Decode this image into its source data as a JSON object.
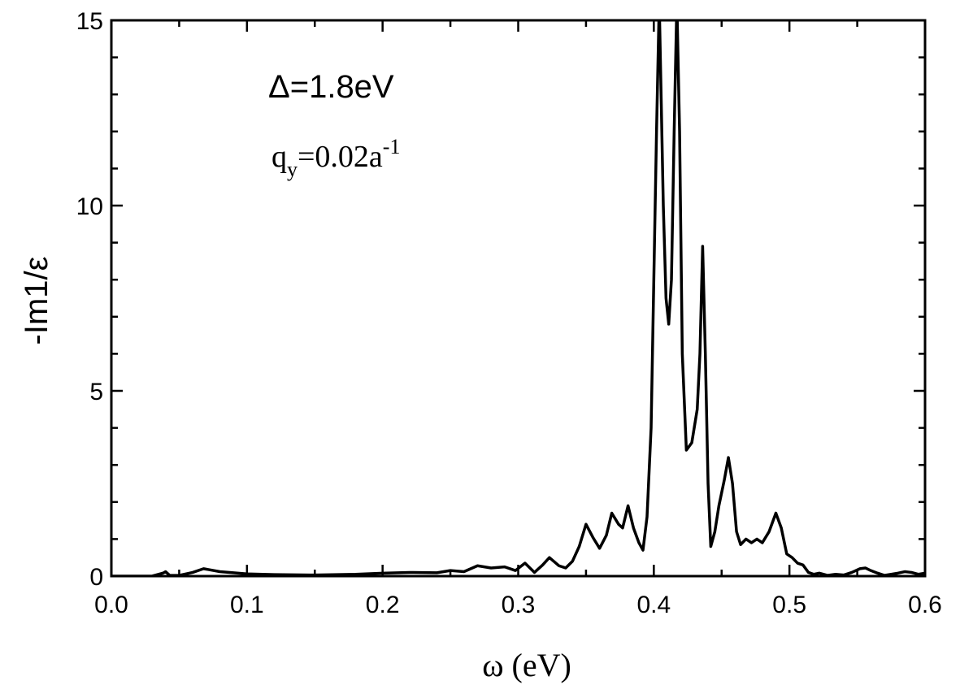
{
  "chart_data": {
    "type": "line",
    "title": "",
    "xlabel": "ω (eV)",
    "ylabel": "-Im1/ε",
    "xlim": [
      0.0,
      0.6
    ],
    "ylim": [
      0,
      15
    ],
    "x_ticks": [
      0.0,
      0.1,
      0.2,
      0.3,
      0.4,
      0.5,
      0.6
    ],
    "x_tick_labels": [
      "0.0",
      "0.1",
      "0.2",
      "0.3",
      "0.4",
      "0.5",
      "0.6"
    ],
    "y_ticks": [
      0,
      5,
      10,
      15
    ],
    "y_tick_labels": [
      "0",
      "5",
      "10",
      "15"
    ],
    "grid": false,
    "line_color": "#000000",
    "annotations": {
      "delta": "Δ=1.8eV",
      "q_main": "q",
      "q_sub": "y",
      "q_value": "=0.02a",
      "q_sup": "-1"
    },
    "series": [
      {
        "name": "",
        "x": [
          0.0,
          0.03,
          0.038,
          0.04,
          0.043,
          0.05,
          0.06,
          0.068,
          0.08,
          0.1,
          0.12,
          0.15,
          0.18,
          0.2,
          0.22,
          0.24,
          0.25,
          0.26,
          0.27,
          0.28,
          0.29,
          0.298,
          0.305,
          0.312,
          0.318,
          0.323,
          0.33,
          0.335,
          0.34,
          0.345,
          0.35,
          0.355,
          0.36,
          0.365,
          0.369,
          0.374,
          0.377,
          0.381,
          0.385,
          0.389,
          0.392,
          0.395,
          0.398,
          0.4,
          0.402,
          0.404,
          0.407,
          0.409,
          0.411,
          0.413,
          0.415,
          0.417,
          0.419,
          0.421,
          0.424,
          0.428,
          0.432,
          0.434,
          0.436,
          0.438,
          0.44,
          0.442,
          0.445,
          0.448,
          0.452,
          0.455,
          0.458,
          0.461,
          0.464,
          0.468,
          0.472,
          0.476,
          0.48,
          0.485,
          0.49,
          0.494,
          0.498,
          0.502,
          0.506,
          0.51,
          0.514,
          0.518,
          0.522,
          0.528,
          0.534,
          0.54,
          0.546,
          0.552,
          0.556,
          0.56,
          0.565,
          0.57,
          0.575,
          0.58,
          0.585,
          0.59,
          0.595,
          0.6
        ],
        "y": [
          0.0,
          0.0,
          0.08,
          0.12,
          0.02,
          0.02,
          0.1,
          0.2,
          0.12,
          0.06,
          0.04,
          0.03,
          0.05,
          0.08,
          0.1,
          0.09,
          0.15,
          0.12,
          0.28,
          0.22,
          0.25,
          0.15,
          0.35,
          0.1,
          0.3,
          0.5,
          0.28,
          0.22,
          0.4,
          0.8,
          1.4,
          1.05,
          0.75,
          1.1,
          1.7,
          1.4,
          1.3,
          1.9,
          1.3,
          0.9,
          0.7,
          1.6,
          4.0,
          8.0,
          12.0,
          15.5,
          10.0,
          7.5,
          6.8,
          8.0,
          12.0,
          15.5,
          12.0,
          6.0,
          3.4,
          3.6,
          4.5,
          6.0,
          8.9,
          6.0,
          2.5,
          0.8,
          1.2,
          1.9,
          2.6,
          3.2,
          2.5,
          1.2,
          0.85,
          1.0,
          0.9,
          1.0,
          0.9,
          1.2,
          1.7,
          1.3,
          0.6,
          0.5,
          0.35,
          0.3,
          0.1,
          0.05,
          0.08,
          0.02,
          0.05,
          0.03,
          0.1,
          0.2,
          0.22,
          0.15,
          0.08,
          0.02,
          0.05,
          0.08,
          0.12,
          0.1,
          0.05,
          0.08
        ]
      }
    ]
  }
}
